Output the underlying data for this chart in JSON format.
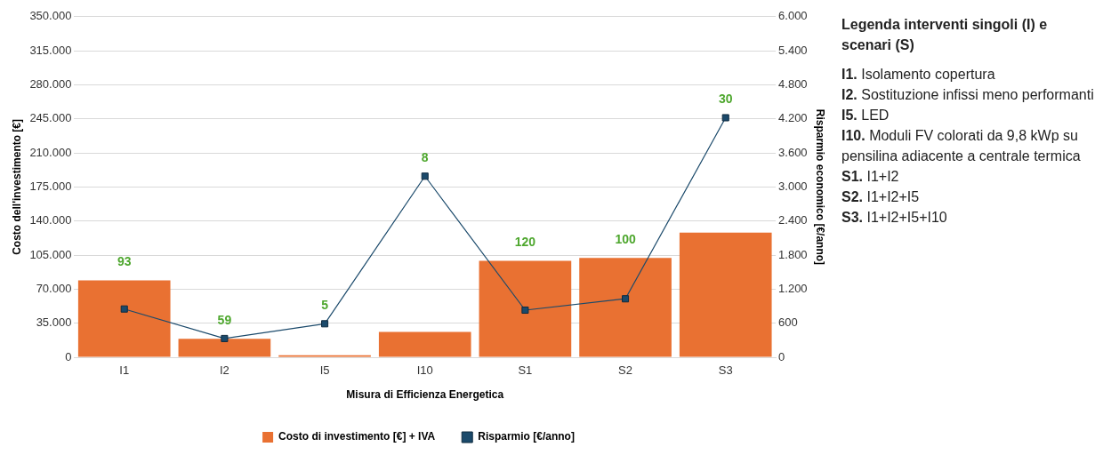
{
  "chart_data": [
    {
      "type": "bar",
      "xlabel": "Misura di Efficienza Energetica",
      "ylabel": "Costo dell'investimento [€]",
      "y2label": "Risparmio economico [€/anno]",
      "categories": [
        "I1",
        "I2",
        "I5",
        "I10",
        "S1",
        "S2",
        "S3"
      ],
      "series": [
        {
          "name": "Costo di investimento [€] + IVA",
          "type": "bar",
          "color": "#e97132",
          "values": [
            79000,
            19000,
            2000,
            26000,
            99000,
            102000,
            128000
          ]
        },
        {
          "name": "Risparmio [€/anno]",
          "type": "line",
          "axis": "y2",
          "color": "#1b4a6b",
          "values": [
            850,
            330,
            590,
            3190,
            830,
            1030,
            4220
          ]
        }
      ],
      "ylim": [
        0,
        350000
      ],
      "yticks": [
        0,
        {
          "value": 35000,
          "label": "35.000"
        },
        {
          "value": 70000,
          "label": "70.000"
        },
        {
          "value": 105000,
          "label": "105.000"
        },
        {
          "value": 140000,
          "label": "140.000"
        },
        {
          "value": 175000,
          "label": "175.000"
        },
        {
          "value": 210000,
          "label": "210.000"
        },
        {
          "value": 245000,
          "label": "245.000"
        },
        {
          "value": 280000,
          "label": "280.000"
        },
        {
          "value": 315000,
          "label": "315.000"
        },
        {
          "value": 350000,
          "label": "350.000"
        }
      ],
      "y2lim": [
        0,
        6000
      ],
      "y2ticks": [
        0,
        600,
        {
          "value": 1200,
          "label": "1.200"
        },
        {
          "value": 1800,
          "label": "1.800"
        },
        {
          "value": 2400,
          "label": "2.400"
        },
        {
          "value": 3000,
          "label": "3.000"
        },
        {
          "value": 3600,
          "label": "3.600"
        },
        {
          "value": 4200,
          "label": "4.200"
        },
        {
          "value": 4800,
          "label": "4.800"
        },
        {
          "value": 5400,
          "label": "5.400"
        },
        {
          "value": 6000,
          "label": "6.000"
        }
      ],
      "annotations": [
        "93",
        "59",
        "5",
        "8",
        "120",
        "100",
        "30"
      ],
      "grid": "y",
      "legend": "bottom",
      "marker": "square",
      "line_style": "solid"
    },
    {
      "type": "other",
      "title": "Legenda interventi singoli (I) e scenari (S)",
      "annotations": [
        "I1. Isolamento copertura",
        "I2. Sostituzione infissi meno performanti",
        "I5. LED",
        "I10. Moduli FV colorati da 9,8 kWp su pensilina adiacente a centrale termica",
        "S1. I1+I2",
        "S2. I1+I2+I5",
        "S3. I1+I2+I5+I10"
      ]
    }
  ]
}
